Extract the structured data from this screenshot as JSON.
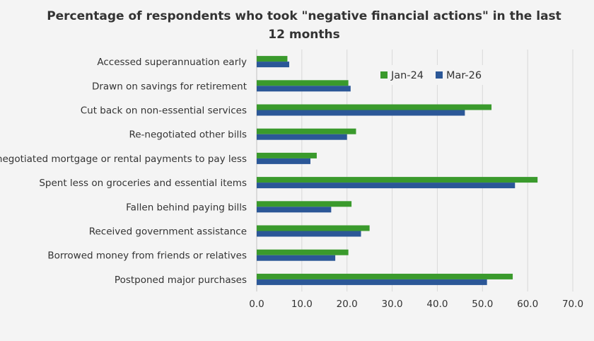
{
  "chart_data": {
    "type": "bar",
    "orientation": "horizontal",
    "title": "Percentage of respondents who took  \"negative financial actions\" in the last 12 months",
    "xlabel": "",
    "ylabel": "",
    "xlim": [
      0,
      70
    ],
    "x_ticks": [
      "0.0",
      "10.0",
      "20.0",
      "30.0",
      "40.0",
      "50.0",
      "60.0",
      "70.0"
    ],
    "grid": "vertical",
    "legend_position": "top-right",
    "categories": [
      "Accessed superannuation early",
      "Drawn on savings for retirement",
      "Cut back on non-essential services",
      "Re-negotiated other bills",
      "Re-negotiated mortgage or rental payments to pay less",
      "Spent less on groceries and essential items",
      "Fallen behind paying bills",
      "Received government assistance",
      "Borrowed money from friends or relatives",
      "Postponed major purchases"
    ],
    "series": [
      {
        "name": "Jan-24",
        "color": "#3a9a2c",
        "values": [
          6.8,
          20.3,
          52.0,
          22.0,
          13.3,
          62.2,
          21.0,
          25.0,
          20.3,
          56.7
        ]
      },
      {
        "name": "Mar-26",
        "color": "#2b5797",
        "values": [
          7.2,
          20.8,
          46.1,
          20.0,
          11.9,
          57.2,
          16.5,
          23.1,
          17.4,
          51.0
        ]
      }
    ]
  }
}
